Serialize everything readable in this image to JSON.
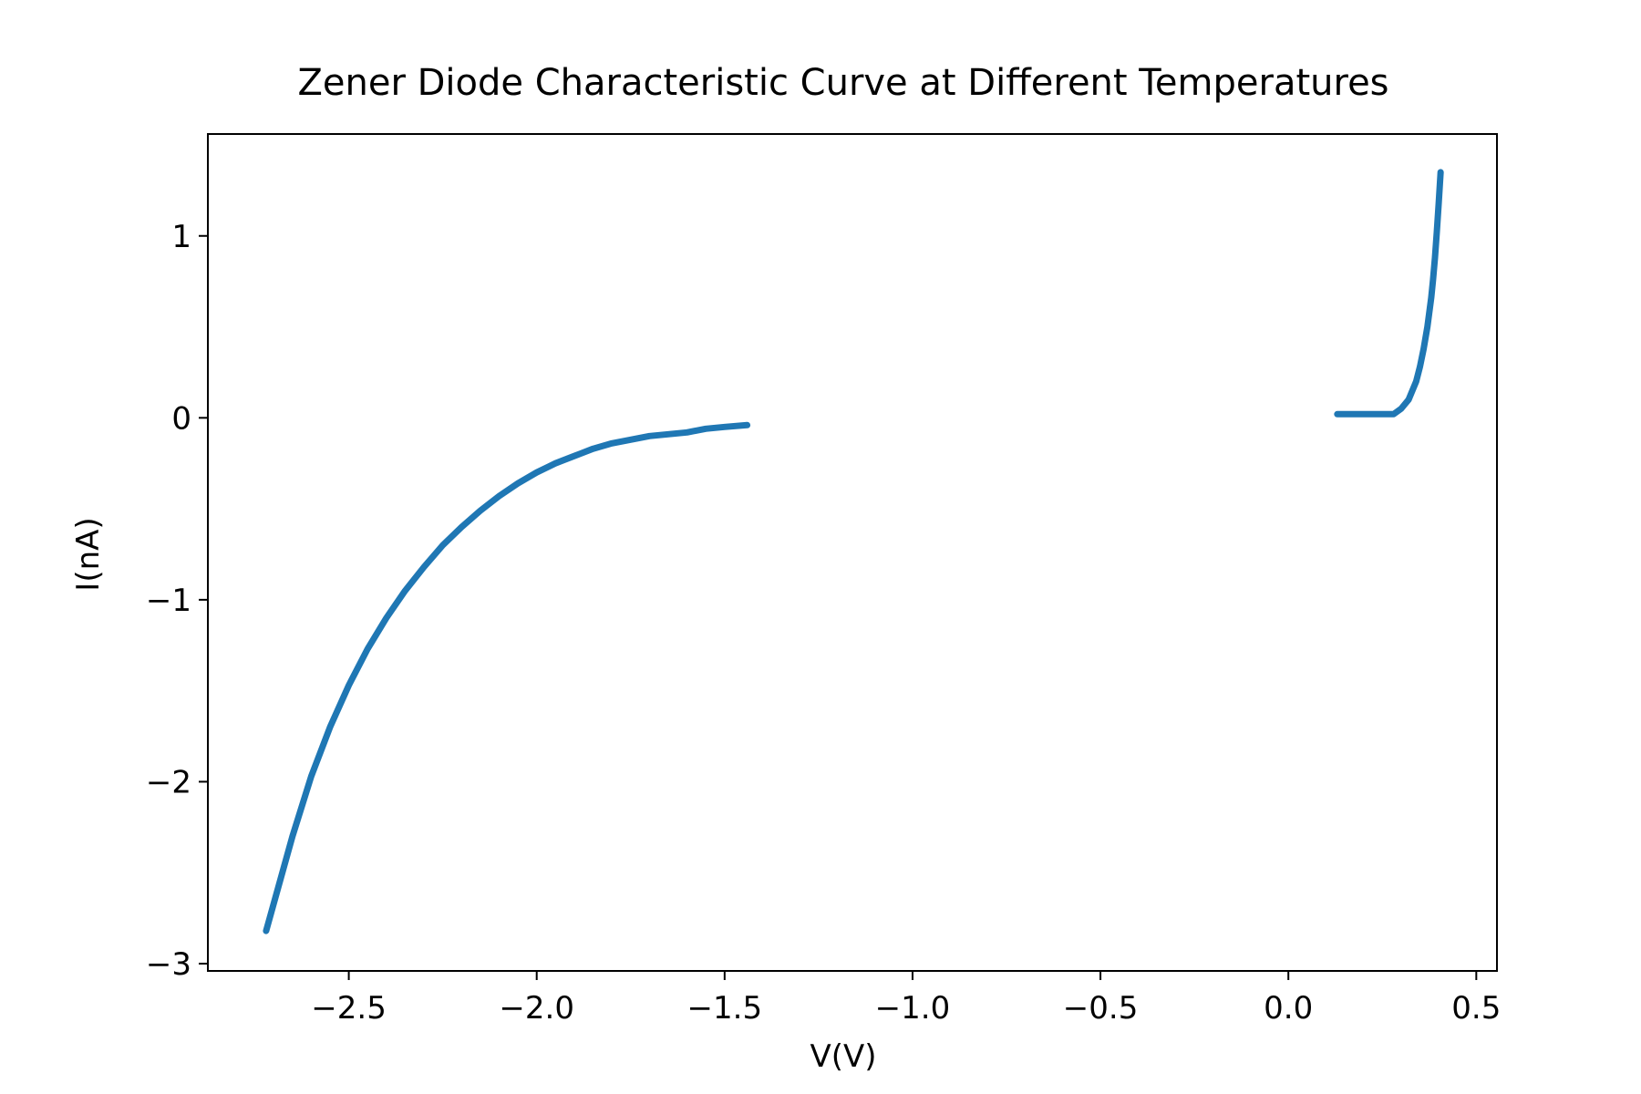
{
  "chart_data": {
    "type": "line",
    "title": "Zener Diode Characteristic Curve at Different Temperatures",
    "xlabel": "V(V)",
    "ylabel": "I(nA)",
    "xlim": [
      -2.875,
      0.555
    ],
    "ylim": [
      -3.04,
      1.56
    ],
    "xticks": [
      -2.5,
      -2.0,
      -1.5,
      -1.0,
      -0.5,
      0.0,
      0.5
    ],
    "xtick_labels": [
      "−2.5",
      "−2.0",
      "−1.5",
      "−1.0",
      "−0.5",
      "0.0",
      "0.5"
    ],
    "yticks": [
      -3,
      -2,
      -1,
      0,
      1
    ],
    "ytick_labels": [
      "−3",
      "−2",
      "−1",
      "0",
      "1"
    ],
    "grid": false,
    "colors": {
      "series": "#1f77b4",
      "axes": "#000000",
      "background": "#ffffff"
    },
    "series": [
      {
        "segment": "reverse",
        "x": [
          -2.72,
          -2.65,
          -2.6,
          -2.55,
          -2.5,
          -2.45,
          -2.4,
          -2.35,
          -2.3,
          -2.25,
          -2.2,
          -2.15,
          -2.1,
          -2.05,
          -2.0,
          -1.95,
          -1.9,
          -1.85,
          -1.8,
          -1.75,
          -1.7,
          -1.65,
          -1.6,
          -1.55,
          -1.5,
          -1.44
        ],
        "y": [
          -2.82,
          -2.3,
          -1.97,
          -1.7,
          -1.47,
          -1.27,
          -1.1,
          -0.95,
          -0.82,
          -0.7,
          -0.6,
          -0.51,
          -0.43,
          -0.36,
          -0.3,
          -0.25,
          -0.21,
          -0.17,
          -0.14,
          -0.12,
          -0.1,
          -0.09,
          -0.08,
          -0.06,
          -0.05,
          -0.04
        ]
      },
      {
        "segment": "forward",
        "x": [
          0.13,
          0.18,
          0.22,
          0.26,
          0.28,
          0.3,
          0.32,
          0.34,
          0.35,
          0.36,
          0.37,
          0.38,
          0.385,
          0.39,
          0.395,
          0.4,
          0.405
        ],
        "y": [
          0.02,
          0.02,
          0.02,
          0.02,
          0.02,
          0.05,
          0.1,
          0.2,
          0.28,
          0.38,
          0.5,
          0.66,
          0.76,
          0.88,
          1.02,
          1.18,
          1.35
        ]
      }
    ]
  }
}
